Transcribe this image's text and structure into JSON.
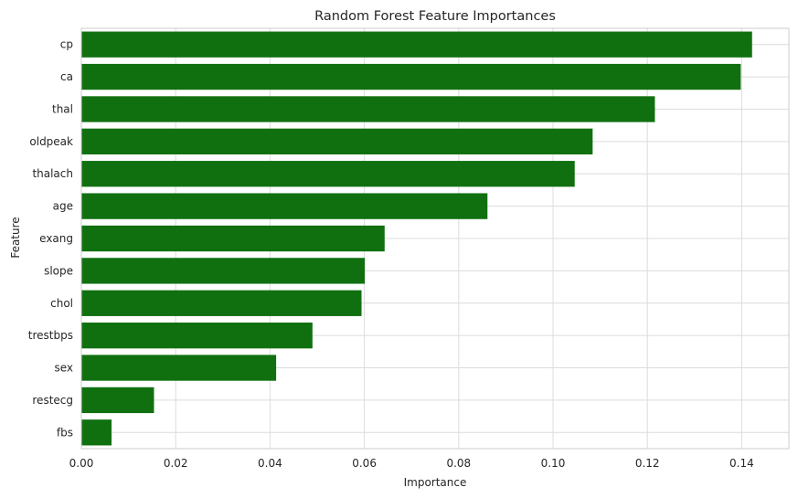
{
  "chart_data": {
    "type": "bar",
    "orientation": "horizontal",
    "title": "Random Forest Feature Importances",
    "xlabel": "Importance",
    "ylabel": "Feature",
    "categories": [
      "cp",
      "ca",
      "thal",
      "oldpeak",
      "thalach",
      "age",
      "exang",
      "slope",
      "chol",
      "trestbps",
      "sex",
      "restecg",
      "fbs"
    ],
    "values": [
      0.1422,
      0.1398,
      0.1216,
      0.1084,
      0.1046,
      0.0861,
      0.0643,
      0.0601,
      0.0594,
      0.049,
      0.0413,
      0.0154,
      0.0064
    ],
    "xlim": [
      0,
      0.15
    ],
    "xticks": [
      0.0,
      0.02,
      0.04,
      0.06,
      0.08,
      0.1,
      0.12,
      0.14
    ],
    "xtick_labels": [
      "0.00",
      "0.02",
      "0.04",
      "0.06",
      "0.08",
      "0.10",
      "0.12",
      "0.14"
    ],
    "bar_color": "#107010",
    "grid": true
  }
}
